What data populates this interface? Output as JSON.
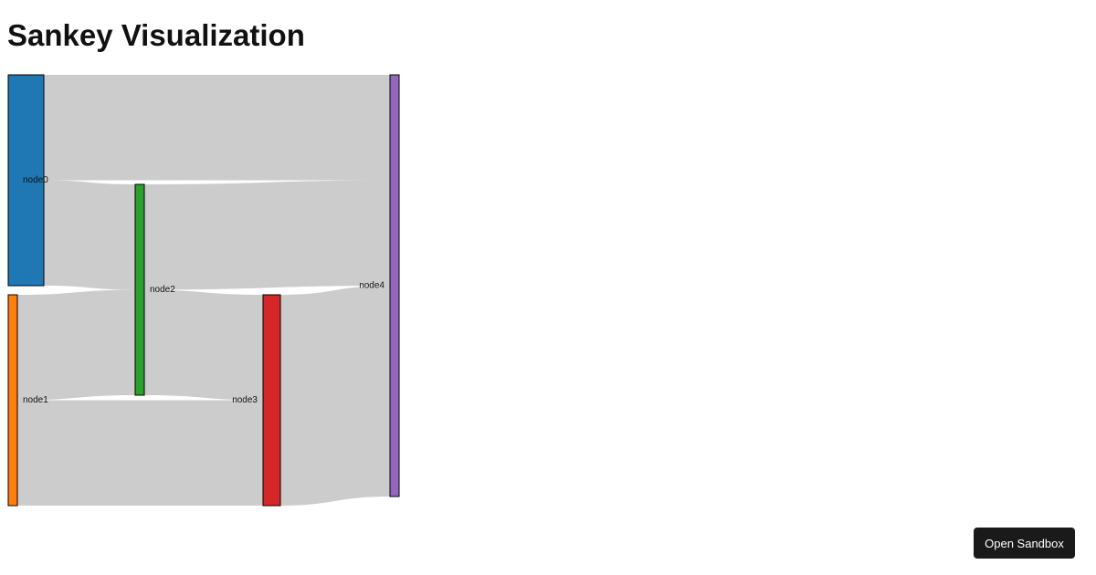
{
  "chart_data": {
    "type": "sankey",
    "title": "Sankey Visualization",
    "nodes": [
      {
        "name": "node0",
        "color": "#1f77b4"
      },
      {
        "name": "node1",
        "color": "#ff7f0e"
      },
      {
        "name": "node2",
        "color": "#2ca02c"
      },
      {
        "name": "node3",
        "color": "#d62728"
      },
      {
        "name": "node4",
        "color": "#9467bd"
      }
    ],
    "links": [
      {
        "source": 0,
        "target": 2,
        "value": 2
      },
      {
        "source": 0,
        "target": 4,
        "value": 2
      },
      {
        "source": 1,
        "target": 2,
        "value": 2
      },
      {
        "source": 1,
        "target": 3,
        "value": 2
      },
      {
        "source": 2,
        "target": 3,
        "value": 2
      },
      {
        "source": 2,
        "target": 4,
        "value": 2
      },
      {
        "source": 3,
        "target": 4,
        "value": 4
      }
    ]
  },
  "ui": {
    "button": "Open Sandbox"
  }
}
